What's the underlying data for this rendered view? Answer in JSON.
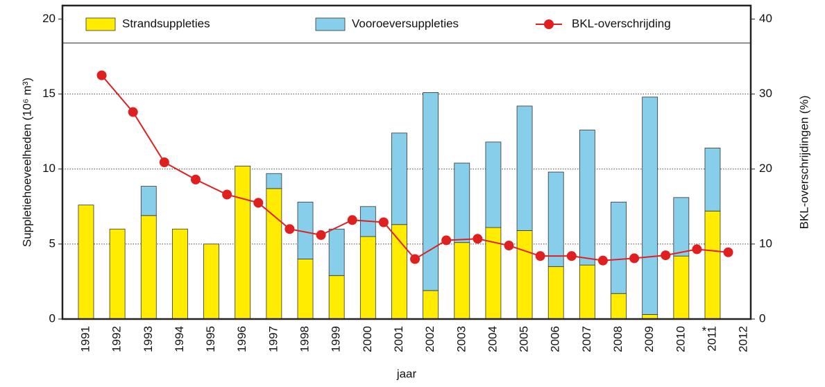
{
  "chart_data": {
    "type": "bar",
    "x_label": "jaar",
    "y_label": "Suppletiehoeveelheden (10⁶ m³)",
    "y2_label": "BKL-overschrijdingen (%)",
    "annotation": "*",
    "categories": [
      "1991",
      "1992",
      "1993",
      "1994",
      "1995",
      "1996",
      "1997",
      "1998",
      "1999",
      "2000",
      "2001",
      "2002",
      "2003",
      "2004",
      "2005",
      "2006",
      "2007",
      "2008",
      "2009",
      "2010",
      "2011",
      "2012"
    ],
    "series": [
      {
        "name": "Strandsuppleties",
        "color": "#ffec00",
        "values": [
          7.6,
          6.0,
          6.9,
          6.0,
          5.0,
          10.2,
          8.7,
          4.0,
          2.9,
          5.5,
          6.3,
          1.9,
          5.1,
          6.1,
          5.9,
          3.5,
          3.6,
          1.7,
          0.3,
          4.2,
          7.2,
          null
        ]
      },
      {
        "name": "Vooroeversuppleties",
        "color": "#87ceeb",
        "values": [
          0,
          0,
          1.95,
          0,
          0,
          0,
          1.0,
          3.8,
          3.1,
          2.0,
          6.1,
          13.2,
          5.3,
          5.7,
          8.3,
          6.3,
          9.0,
          6.1,
          14.5,
          3.9,
          4.2,
          null
        ]
      },
      {
        "name": "BKL-overschrijding",
        "color": "#e02020",
        "type": "line",
        "axis": "y2",
        "values": [
          null,
          32.5,
          27.6,
          20.9,
          18.6,
          16.6,
          15.5,
          12.0,
          11.2,
          13.2,
          12.9,
          8.0,
          10.5,
          10.7,
          9.8,
          8.4,
          8.4,
          7.8,
          8.1,
          8.5,
          9.3,
          8.9
        ]
      }
    ],
    "ylim": [
      0,
      20.9
    ],
    "yticks": [
      0,
      5,
      10,
      15,
      20
    ],
    "y2lim": [
      0,
      41.8
    ],
    "y2ticks": [
      0,
      10,
      20,
      30,
      40
    ],
    "grid": true,
    "legend": "top"
  }
}
